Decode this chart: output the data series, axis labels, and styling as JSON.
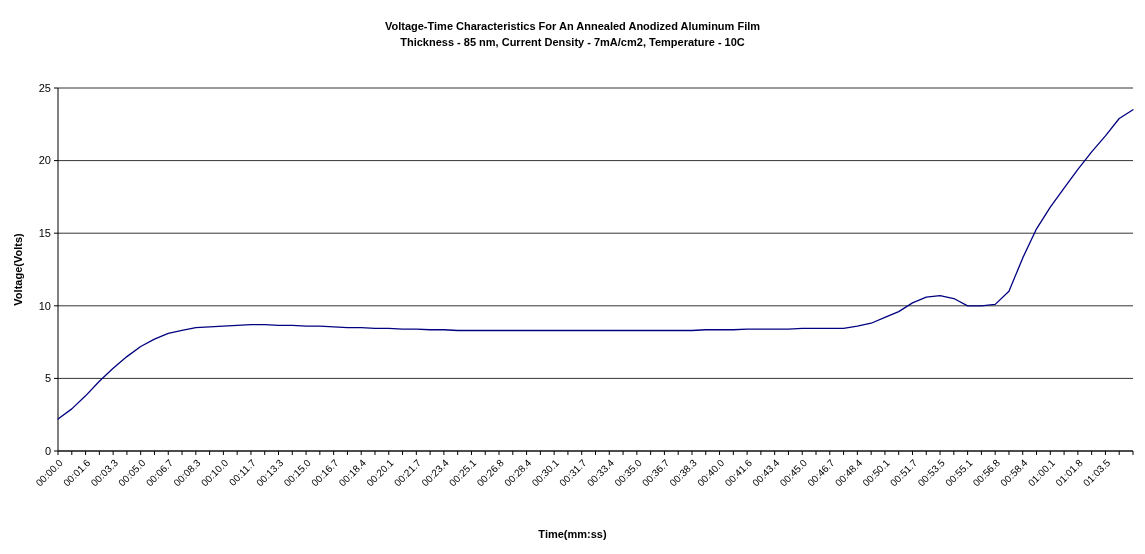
{
  "chart_data": {
    "type": "line",
    "title": "Voltage-Time Characteristics For An Annealed Anodized Aluminum Film",
    "subtitle": "Thickness - 85 nm, Current Density - 7mA/cm2, Temperature - 10C",
    "xlabel": "Time(mm:ss)",
    "ylabel": "Voltage(Volts)",
    "categories": [
      "00:00.0",
      null,
      "00:01.6",
      null,
      "00:03.3",
      null,
      "00:05.0",
      null,
      "00:06.7",
      null,
      "00:08.3",
      null,
      "00:10.0",
      null,
      "00:11.7",
      null,
      "00:13.3",
      null,
      "00:15.0",
      null,
      "00:16.7",
      null,
      "00:18.4",
      null,
      "00:20.1",
      null,
      "00:21.7",
      null,
      "00:23.4",
      null,
      "00:25.1",
      null,
      "00:26.8",
      null,
      "00:28.4",
      null,
      "00:30.1",
      null,
      "00:31.7",
      null,
      "00:33.4",
      null,
      "00:35.0",
      null,
      "00:36.7",
      null,
      "00:38.3",
      null,
      "00:40.0",
      null,
      "00:41.6",
      null,
      "00:43.4",
      null,
      "00:45.0",
      null,
      "00:46.7",
      null,
      "00:48.4",
      null,
      "00:50.1",
      null,
      "00:51.7",
      null,
      "00:53.5",
      null,
      "00:55.1",
      null,
      "00:56.8",
      null,
      "00:58.4",
      null,
      "01:00.1",
      null,
      "01:01.8",
      null,
      "01:03.5",
      null,
      null
    ],
    "series": [
      {
        "color": "#000080",
        "values": [
          2.2,
          2.9,
          3.8,
          4.8,
          5.7,
          6.5,
          7.2,
          7.7,
          8.1,
          8.3,
          8.5,
          8.55,
          8.6,
          8.65,
          8.7,
          8.7,
          8.65,
          8.65,
          8.6,
          8.6,
          8.55,
          8.5,
          8.5,
          8.45,
          8.45,
          8.4,
          8.4,
          8.35,
          8.35,
          8.3,
          8.3,
          8.3,
          8.3,
          8.3,
          8.3,
          8.3,
          8.3,
          8.3,
          8.3,
          8.3,
          8.3,
          8.3,
          8.3,
          8.3,
          8.3,
          8.3,
          8.3,
          8.35,
          8.35,
          8.35,
          8.4,
          8.4,
          8.4,
          8.4,
          8.45,
          8.45,
          8.45,
          8.45,
          8.6,
          8.8,
          9.2,
          9.6,
          10.2,
          10.6,
          10.7,
          10.5,
          10.0,
          10.0,
          10.1,
          11.0,
          13.3,
          15.3,
          16.8,
          18.1,
          19.4,
          20.6,
          21.7,
          22.9,
          23.5
        ]
      }
    ],
    "ylim": [
      0,
      25
    ],
    "yticks": [
      0,
      5,
      10,
      15,
      20,
      25
    ],
    "grid": "y",
    "marker": "none",
    "line_style": "solid"
  }
}
